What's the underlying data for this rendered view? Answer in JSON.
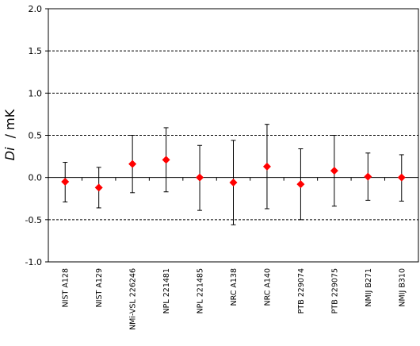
{
  "chart_data": {
    "type": "scatter",
    "title": "",
    "xlabel": "",
    "ylabel_symbol": "Di",
    "ylabel_unit": "/ mK",
    "ylim": [
      -1.0,
      2.0
    ],
    "yticks": [
      "-1.0",
      "-0.5",
      "0.0",
      "0.5",
      "1.0",
      "1.5",
      "2.0"
    ],
    "ytick_values": [
      -1.0,
      -0.5,
      0.0,
      0.5,
      1.0,
      1.5,
      2.0
    ],
    "dashed_gridlines_at": [
      -0.5,
      0.5,
      1.0,
      1.5
    ],
    "zero_line": true,
    "legend": "none",
    "marker": "diamond",
    "marker_color": "#ff0000",
    "errorbar_color": "#000000",
    "categories": [
      "NIST A128",
      "NIST A129",
      "NMi-VSL 226246",
      "NPL 221481",
      "NPL 221485",
      "NRC A138",
      "NRC A140",
      "PTB 229074",
      "PTB 229075",
      "NMIJ B271",
      "NMIJ B310"
    ],
    "values": [
      -0.05,
      -0.12,
      0.16,
      0.21,
      0.0,
      -0.06,
      0.13,
      -0.08,
      0.08,
      0.01,
      0.0
    ],
    "error_upper": [
      0.18,
      0.12,
      0.5,
      0.59,
      0.38,
      0.44,
      0.63,
      0.34,
      0.5,
      0.29,
      0.27
    ],
    "error_lower": [
      -0.29,
      -0.36,
      -0.18,
      -0.17,
      -0.39,
      -0.56,
      -0.37,
      -0.5,
      -0.34,
      -0.27,
      -0.28
    ]
  }
}
